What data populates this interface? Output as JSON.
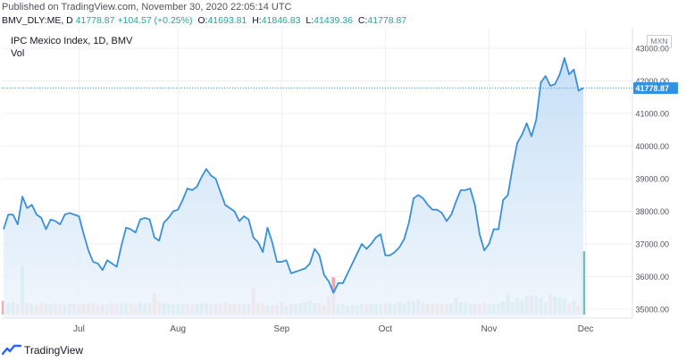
{
  "header": {
    "published": "Published on TradingView.com, November 30, 2020 22:05:14 UTC",
    "symbol": "BMV_DLY:ME, D",
    "last": "41778.87",
    "change": "+104.57 (+0.25%)",
    "o_label": "O:",
    "o": "41693.81",
    "h_label": "H:",
    "h": "41846.83",
    "l_label": "L:",
    "l": "41439.36",
    "c_label": "C:",
    "c": "41778.87"
  },
  "chart_title": "IPC Mexico Index, 1D, BMV",
  "volume_label": "Vol",
  "currency": "MXN",
  "footer": {
    "brand": "TradingView",
    "logo_icon": "tradingview-logo-icon"
  },
  "colors": {
    "line": "#3a8fd9",
    "area_top": "#c4def6",
    "area_bottom": "#eef5fc",
    "vol_up": "#8ecfc5",
    "vol_down": "#eea9ab",
    "vol_last": "#6fc1b4",
    "grid": "#eef0f3",
    "price_tag": "#2f92e5"
  },
  "chart_data": {
    "type": "area",
    "title": "IPC Mexico Index, 1D, BMV",
    "xlabel": "",
    "ylabel": "",
    "ylim": [
      34950,
      43600
    ],
    "y_ticks": [
      35000,
      36000,
      37000,
      38000,
      39000,
      40000,
      41000,
      42000,
      43000
    ],
    "y_tick_labels": [
      "35000.00",
      "36000.00",
      "37000.00",
      "38000.00",
      "39000.00",
      "40000.00",
      "41000.00",
      "42000.00",
      "43000.00"
    ],
    "x_tick_labels": [
      "Jul",
      "Aug",
      "Sep",
      "Oct",
      "Nov",
      "Dec"
    ],
    "x_tick_index": [
      16,
      37,
      59,
      81,
      103,
      123.5
    ],
    "last_price": 41778.87,
    "last_price_label": "41778.87",
    "close": [
      37450,
      37900,
      37900,
      37600,
      38450,
      38100,
      38200,
      37900,
      37800,
      37450,
      37750,
      37700,
      37600,
      37900,
      37950,
      37900,
      37850,
      37300,
      36800,
      36450,
      36400,
      36200,
      36500,
      36400,
      36300,
      36950,
      37500,
      37450,
      37350,
      37750,
      37800,
      37750,
      37200,
      37100,
      37650,
      37800,
      38000,
      38050,
      38350,
      38700,
      38650,
      38750,
      39050,
      39300,
      39100,
      39000,
      38600,
      38200,
      38100,
      38000,
      37700,
      37850,
      37750,
      37200,
      37050,
      36750,
      37500,
      37050,
      36450,
      36450,
      36500,
      36100,
      36150,
      36200,
      36250,
      36400,
      36850,
      36650,
      36050,
      35850,
      35500,
      35800,
      35800,
      36100,
      36400,
      36700,
      37000,
      36850,
      37000,
      37200,
      37300,
      36650,
      36650,
      36750,
      36900,
      37150,
      37650,
      38400,
      38500,
      38400,
      38200,
      38050,
      38050,
      37950,
      37700,
      37900,
      38300,
      38650,
      38650,
      38700,
      38200,
      37300,
      36800,
      37000,
      37450,
      37450,
      38350,
      38500,
      39350,
      40100,
      40350,
      40700,
      40300,
      40800,
      41950,
      42150,
      41850,
      41900,
      42200,
      42700,
      42200,
      42350,
      41700,
      41778.87
    ],
    "volume_axis_max": 2400000,
    "volume_direction": [
      "down",
      "up",
      "up",
      "down",
      "up",
      "down",
      "up",
      "down",
      "down",
      "down",
      "up",
      "down",
      "down",
      "up",
      "up",
      "down",
      "down",
      "down",
      "down",
      "down",
      "down",
      "down",
      "up",
      "down",
      "down",
      "up",
      "up",
      "down",
      "down",
      "up",
      "up",
      "down",
      "down",
      "down",
      "up",
      "up",
      "up",
      "up",
      "up",
      "down",
      "down",
      "up",
      "up",
      "up",
      "down",
      "down",
      "down",
      "down",
      "down",
      "down",
      "down",
      "up",
      "down",
      "down",
      "down",
      "down",
      "up",
      "down",
      "down",
      "down",
      "up",
      "down",
      "up",
      "up",
      "up",
      "up",
      "up",
      "down",
      "down",
      "down",
      "down",
      "up",
      "up",
      "up",
      "up",
      "up",
      "up",
      "down",
      "up",
      "up",
      "up",
      "down",
      "up",
      "up",
      "up",
      "up",
      "up",
      "up",
      "up",
      "down",
      "down",
      "down",
      "down",
      "down",
      "down",
      "up",
      "up",
      "up",
      "up",
      "up",
      "down",
      "down",
      "down",
      "up",
      "up",
      "up",
      "up",
      "up",
      "up",
      "up",
      "up",
      "up",
      "down",
      "up",
      "up",
      "up",
      "down",
      "up",
      "up",
      "up",
      "down",
      "up",
      "down",
      "up"
    ],
    "volume": [
      380000,
      320000,
      340000,
      300000,
      1350000,
      320000,
      300000,
      280000,
      330000,
      300000,
      280000,
      320000,
      290000,
      260000,
      300000,
      310000,
      280000,
      290000,
      300000,
      320000,
      260000,
      300000,
      280000,
      320000,
      300000,
      290000,
      310000,
      300000,
      280000,
      330000,
      300000,
      320000,
      610000,
      350000,
      320000,
      300000,
      280000,
      300000,
      310000,
      290000,
      280000,
      310000,
      300000,
      320000,
      290000,
      300000,
      310000,
      330000,
      290000,
      300000,
      280000,
      290000,
      300000,
      730000,
      320000,
      300000,
      250000,
      260000,
      270000,
      350000,
      240000,
      300000,
      280000,
      320000,
      340000,
      380000,
      330000,
      310000,
      260000,
      500000,
      1040000,
      280000,
      300000,
      250000,
      270000,
      260000,
      300000,
      280000,
      310000,
      290000,
      280000,
      300000,
      320000,
      290000,
      350000,
      310000,
      370000,
      360000,
      420000,
      330000,
      300000,
      290000,
      310000,
      300000,
      280000,
      320000,
      470000,
      350000,
      330000,
      300000,
      300000,
      290000,
      320000,
      280000,
      310000,
      300000,
      370000,
      560000,
      350000,
      480000,
      420000,
      520000,
      540000,
      510000,
      460000,
      350000,
      560000,
      500000,
      480000,
      440000,
      320000,
      390000,
      260000,
      1770000
    ]
  }
}
